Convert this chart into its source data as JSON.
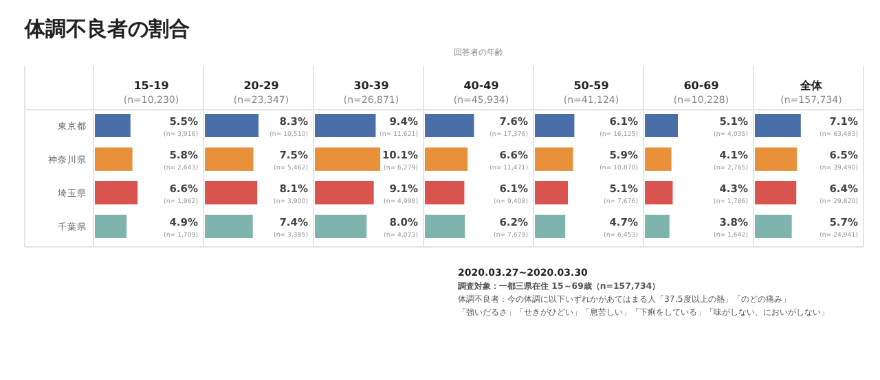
{
  "chart_data": [
    {
      "type": "other",
      "title": "体調不良者の割合",
      "subtitle": "回答者の年齢",
      "annotations": [
        "2020.03.27~2020.03.30",
        "調査対象：一都三県在住 15～69歳（n=157,734）",
        "体調不良者：今の体調に以下いずれかがあてはまる人「37.5度以上の熱」「のどの痛み」",
        "「強いだるさ」「せきがひどい」「息苦しい」「下痢をしている」「味がしない、においがしない」"
      ]
    },
    {
      "type": "bar",
      "orientation": "horizontal",
      "title": "15-19",
      "subtitle": "(n=10,230)",
      "categories": [
        "東京都",
        "神奈川県",
        "埼玉県",
        "千葉県"
      ],
      "values": [
        5.5,
        5.8,
        6.6,
        4.9
      ],
      "value_labels": [
        "5.5%",
        "5.8%",
        "6.6%",
        "4.9%"
      ],
      "colors": [
        "#4a6fa8",
        "#e8913a",
        "#d9534f",
        "#7fb3ad"
      ],
      "xlim": [
        0,
        17
      ],
      "tick_labels": "y",
      "annotations": [
        "(n= 3,916)",
        "(n= 2,643)",
        "(n= 1,962)",
        "(n= 1,709)"
      ]
    },
    {
      "type": "bar",
      "orientation": "horizontal",
      "title": "20-29",
      "subtitle": "(n=23,347)",
      "categories": [
        null,
        null,
        null,
        null
      ],
      "values": [
        8.3,
        7.5,
        8.1,
        7.4
      ],
      "value_labels": [
        "8.3%",
        "7.5%",
        "8.1%",
        "7.4%"
      ],
      "colors": [
        "#4a6fa8",
        "#e8913a",
        "#d9534f",
        "#7fb3ad"
      ],
      "xlim": [
        0,
        17
      ],
      "annotations": [
        "(n= 10,510)",
        "(n= 5,462)",
        "(n= 3,900)",
        "(n= 3,385)"
      ]
    },
    {
      "type": "bar",
      "orientation": "horizontal",
      "title": "30-39",
      "subtitle": "(n=26,871)",
      "categories": [
        null,
        null,
        null,
        null
      ],
      "values": [
        9.4,
        10.1,
        9.1,
        8.0
      ],
      "value_labels": [
        "9.4%",
        "10.1%",
        "9.1%",
        "8.0%"
      ],
      "colors": [
        "#4a6fa8",
        "#e8913a",
        "#d9534f",
        "#7fb3ad"
      ],
      "xlim": [
        0,
        17
      ],
      "annotations": [
        "(n= 11,621)",
        "(n= 6,279)",
        "(n= 4,998)",
        "(n= 4,073)"
      ]
    },
    {
      "type": "bar",
      "orientation": "horizontal",
      "title": "40-49",
      "subtitle": "(n=45,934)",
      "categories": [
        null,
        null,
        null,
        null
      ],
      "values": [
        7.6,
        6.6,
        6.1,
        6.2
      ],
      "value_labels": [
        "7.6%",
        "6.6%",
        "6.1%",
        "6.2%"
      ],
      "colors": [
        "#4a6fa8",
        "#e8913a",
        "#d9534f",
        "#7fb3ad"
      ],
      "xlim": [
        0,
        17
      ],
      "annotations": [
        "(n= 17,376)",
        "(n= 11,471)",
        "(n= 9,408)",
        "(n= 7,679)"
      ]
    },
    {
      "type": "bar",
      "orientation": "horizontal",
      "title": "50-59",
      "subtitle": "(n=41,124)",
      "categories": [
        null,
        null,
        null,
        null
      ],
      "values": [
        6.1,
        5.9,
        5.1,
        4.7
      ],
      "value_labels": [
        "6.1%",
        "5.9%",
        "5.1%",
        "4.7%"
      ],
      "colors": [
        "#4a6fa8",
        "#e8913a",
        "#d9534f",
        "#7fb3ad"
      ],
      "xlim": [
        0,
        17
      ],
      "annotations": [
        "(n= 16,125)",
        "(n= 10,870)",
        "(n= 7,676)",
        "(n= 6,453)"
      ]
    },
    {
      "type": "bar",
      "orientation": "horizontal",
      "title": "60-69",
      "subtitle": "(n=10,228)",
      "categories": [
        null,
        null,
        null,
        null
      ],
      "values": [
        5.1,
        4.1,
        4.3,
        3.8
      ],
      "value_labels": [
        "5.1%",
        "4.1%",
        "4.3%",
        "3.8%"
      ],
      "colors": [
        "#4a6fa8",
        "#e8913a",
        "#d9534f",
        "#7fb3ad"
      ],
      "xlim": [
        0,
        17
      ],
      "annotations": [
        "(n= 4,035)",
        "(n= 2,765)",
        "(n= 1,786)",
        "(n= 1,642)"
      ]
    },
    {
      "type": "bar",
      "orientation": "horizontal",
      "title": "全体",
      "subtitle": "(n=157,734)",
      "categories": [
        null,
        null,
        null,
        null
      ],
      "values": [
        7.1,
        6.5,
        6.4,
        5.7
      ],
      "value_labels": [
        "7.1%",
        "6.5%",
        "6.4%",
        "5.7%"
      ],
      "colors": [
        "#4a6fa8",
        "#e8913a",
        "#d9534f",
        "#7fb3ad"
      ],
      "xlim": [
        0,
        17
      ],
      "annotations": [
        "(n= 63,483)",
        "(n= 39,490)",
        "(n= 29,820)",
        "(n= 24,941)"
      ]
    }
  ]
}
